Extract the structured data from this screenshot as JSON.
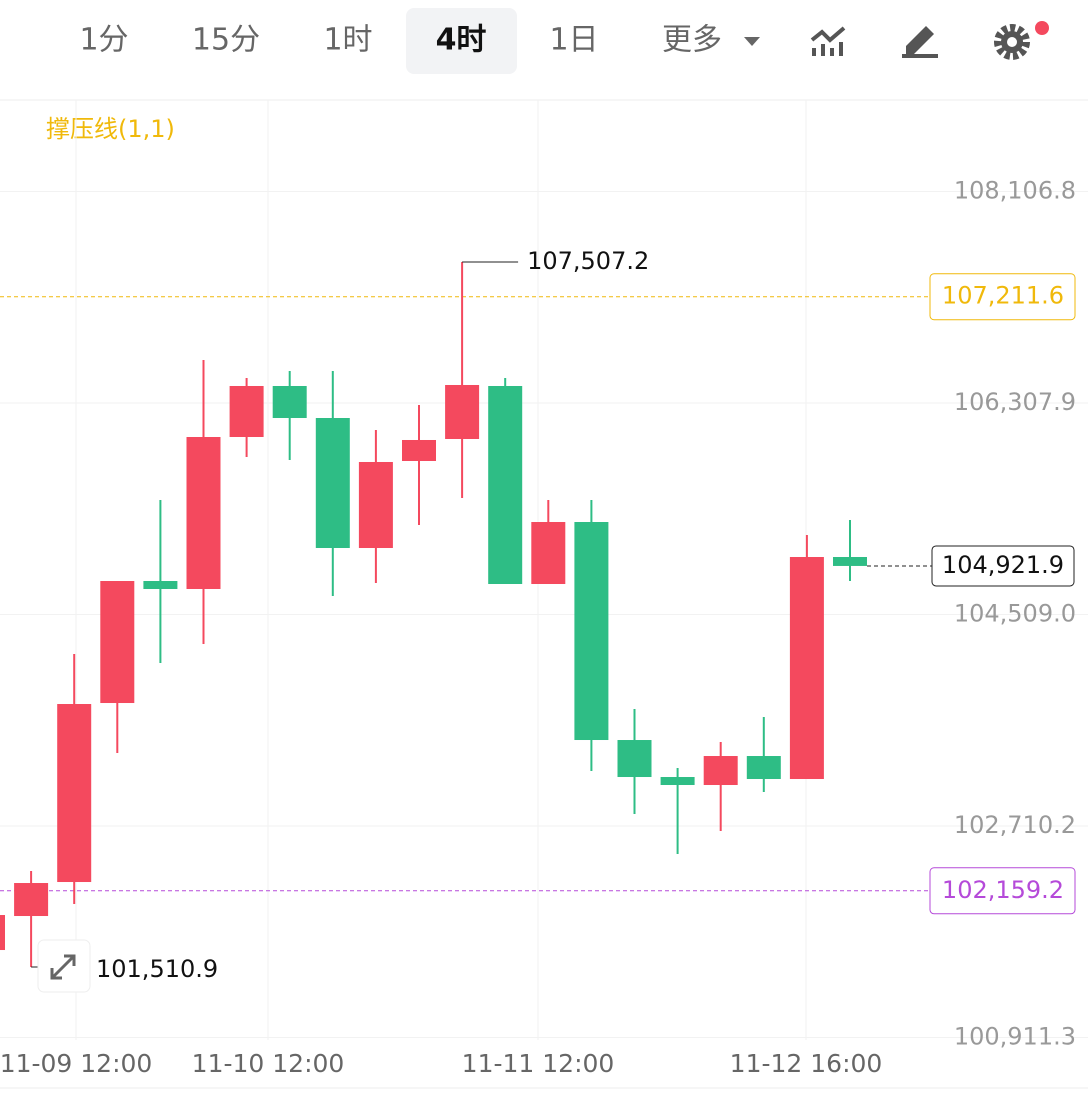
{
  "toolbar": {
    "tabs": [
      "1分",
      "15分",
      "1时",
      "4时",
      "1日"
    ],
    "more": "更多",
    "selected": 3
  },
  "chart_data": {
    "type": "candlestick",
    "indicator": "撑压线(1,1)",
    "up_color": "#f4495e",
    "down_color": "#2ebd85",
    "x_labels": [
      "11-09 12:00",
      "11-10 12:00",
      "11-11 12:00",
      "11-12 16:00"
    ],
    "open": [
      101655.3,
      101944.5,
      102233.7,
      103756.2,
      104793.9,
      104725.9,
      106018.7,
      106452.5,
      106180.3,
      105074.6,
      105814.6,
      106001.7,
      106452.5,
      104768.4,
      105295.7,
      103441.5,
      103126.8,
      103058.8,
      103305.4,
      103109.8,
      104998.0
    ],
    "high": [
      101953.0,
      102327.3,
      104173.0,
      104793.9,
      105482.9,
      106673.6,
      106520.5,
      106580.1,
      106580.1,
      106078.2,
      106290.9,
      107507.2,
      106520.5,
      105482.9,
      105482.9,
      103705.2,
      103203.4,
      103424.5,
      103637.1,
      105185.2,
      105312.7
    ],
    "low": [
      101655.3,
      101510.9,
      102046.6,
      103330.9,
      104096.4,
      104258.1,
      105848.6,
      105823.1,
      104666.3,
      104776.9,
      105270.2,
      105499.9,
      104768.4,
      104768.4,
      103177.8,
      102812.1,
      102471.9,
      102667.5,
      102999.2,
      103109.8,
      104793.9
    ],
    "close": [
      101953.0,
      102225.2,
      103747.7,
      104793.9,
      104725.9,
      106018.7,
      106452.5,
      106180.3,
      105074.6,
      105806.1,
      105993.2,
      106461.0,
      104768.4,
      105295.7,
      103441.5,
      103126.8,
      103058.8,
      103305.4,
      103109.8,
      104998.0,
      104921.9
    ],
    "ylim": [
      100890,
      108885
    ],
    "yticks": [
      {
        "value": 108106.8,
        "label": "108,106.8"
      },
      {
        "value": 106307.9,
        "label": "106,307.9"
      },
      {
        "value": 104509.0,
        "label": "104,509.0"
      },
      {
        "value": 102710.2,
        "label": "102,710.2"
      },
      {
        "value": 100911.3,
        "label": "100,911.3"
      }
    ],
    "resistance": {
      "value": 107211.6,
      "label": "107,211.6",
      "color": "#f0b90b"
    },
    "support": {
      "value": 102159.2,
      "label": "102,159.2",
      "color": "#b54ad9"
    },
    "high_mark": {
      "value": 107507.2,
      "label": "107,507.2"
    },
    "low_mark": {
      "value": 101510.9,
      "label": "101,510.9"
    },
    "last_price": {
      "value": 104921.9,
      "label": "104,921.9"
    }
  }
}
